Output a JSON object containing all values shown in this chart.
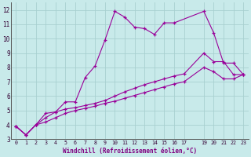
{
  "xlabel": "Windchill (Refroidissement éolien,°C)",
  "background_color": "#c8eaea",
  "grid_color": "#a8d0d0",
  "line_color": "#990099",
  "xlim": [
    -0.5,
    23.5
  ],
  "ylim": [
    3,
    12.5
  ],
  "xtick_positions": [
    0,
    1,
    2,
    3,
    4,
    5,
    6,
    7,
    8,
    9,
    10,
    11,
    12,
    13,
    14,
    15,
    16,
    17,
    19,
    20,
    21,
    22,
    23
  ],
  "xtick_labels": [
    "0",
    "1",
    "2",
    "3",
    "4",
    "5",
    "6",
    "7",
    "8",
    "9",
    "10",
    "11",
    "12",
    "13",
    "14",
    "15",
    "16",
    "17",
    "19",
    "20",
    "21",
    "22",
    "23"
  ],
  "ytick_positions": [
    3,
    4,
    5,
    6,
    7,
    8,
    9,
    10,
    11,
    12
  ],
  "ytick_labels": [
    "3",
    "4",
    "5",
    "6",
    "7",
    "8",
    "9",
    "10",
    "11",
    "12"
  ],
  "series1_x": [
    0,
    1,
    2,
    3,
    4,
    5,
    6,
    7,
    8,
    9,
    10,
    11,
    12,
    13,
    14,
    15,
    16,
    19,
    20,
    21,
    22,
    23
  ],
  "series1_y": [
    3.9,
    3.3,
    4.0,
    4.8,
    4.9,
    5.6,
    5.6,
    7.3,
    8.1,
    9.9,
    11.9,
    11.5,
    10.8,
    10.7,
    10.3,
    11.1,
    11.1,
    11.9,
    10.4,
    8.3,
    8.3,
    7.5
  ],
  "series2_x": [
    0,
    1,
    2,
    3,
    4,
    5,
    6,
    7,
    8,
    9,
    10,
    11,
    12,
    13,
    14,
    15,
    16,
    17,
    19,
    20,
    21,
    22,
    23
  ],
  "series2_y": [
    3.9,
    3.3,
    4.0,
    4.5,
    4.9,
    5.1,
    5.2,
    5.35,
    5.5,
    5.7,
    6.0,
    6.3,
    6.55,
    6.8,
    7.0,
    7.2,
    7.4,
    7.55,
    9.0,
    8.4,
    8.4,
    7.5,
    7.5
  ],
  "series3_x": [
    0,
    1,
    2,
    3,
    4,
    5,
    6,
    7,
    8,
    9,
    10,
    11,
    12,
    13,
    14,
    15,
    16,
    17,
    19,
    20,
    21,
    22,
    23
  ],
  "series3_y": [
    3.9,
    3.3,
    4.0,
    4.2,
    4.5,
    4.8,
    5.0,
    5.15,
    5.3,
    5.5,
    5.65,
    5.85,
    6.05,
    6.25,
    6.45,
    6.65,
    6.85,
    7.0,
    8.0,
    7.7,
    7.2,
    7.2,
    7.5
  ]
}
